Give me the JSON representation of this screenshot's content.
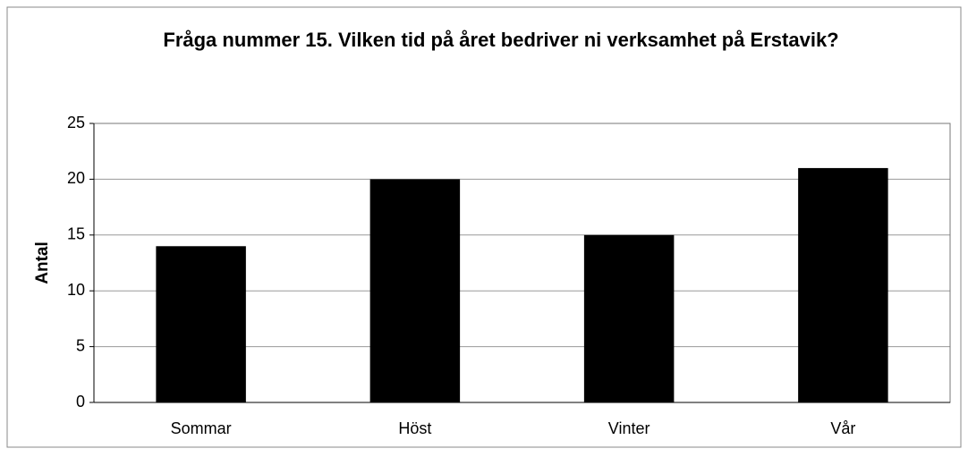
{
  "chart_data": {
    "type": "bar",
    "title": "Fråga nummer 15. Vilken tid på året bedriver ni verksamhet på Erstavik?",
    "ylabel": "Antal",
    "categories": [
      "Sommar",
      "Höst",
      "Vinter",
      "Vår"
    ],
    "values": [
      14,
      20,
      15,
      21
    ],
    "color": "#000000",
    "ylim": [
      0,
      25
    ],
    "yticks": [
      0,
      5,
      10,
      15,
      20,
      25
    ],
    "grid": true
  }
}
